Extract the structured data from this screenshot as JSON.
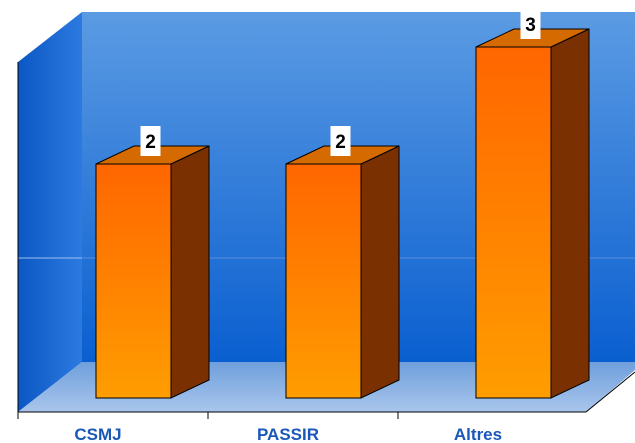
{
  "chart_data": {
    "type": "bar",
    "categories": [
      "CSMJ",
      "PASSIR",
      "Altres"
    ],
    "values": [
      2,
      2,
      3
    ],
    "title": "",
    "xlabel": "",
    "ylabel": "",
    "ylim": [
      0,
      3.3
    ],
    "grid": true,
    "legend": "none",
    "style": "3d",
    "colors": {
      "bar_front_top": "#ff6600",
      "bar_front_bottom": "#ff9d00",
      "bar_side": "#7a3000",
      "bar_top": "#d46a00",
      "back_wall_top": "#5b9be3",
      "back_wall_bottom": "#0a5fd0",
      "side_wall": "#1466d6",
      "floor": "#8fb3e0",
      "label": "#1a57b8",
      "data_label_bg": "#ffffff"
    }
  }
}
